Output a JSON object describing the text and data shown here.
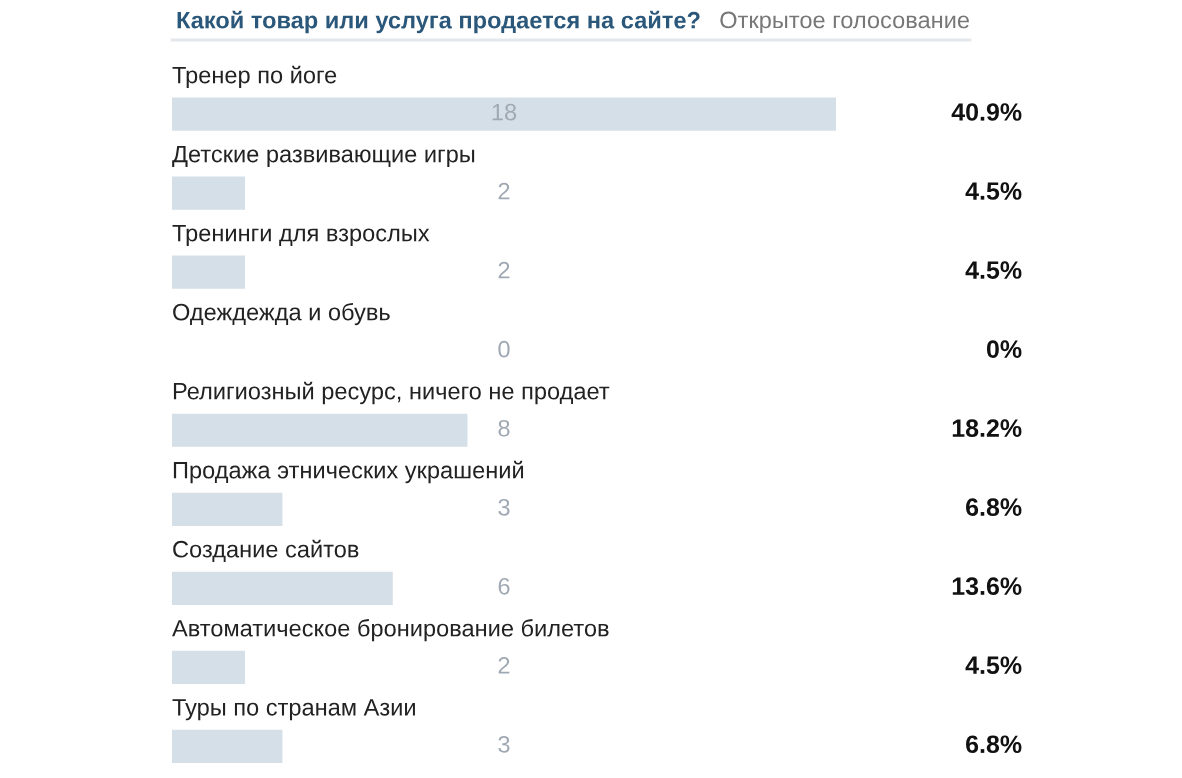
{
  "chart_data": {
    "type": "bar",
    "orientation": "horizontal",
    "title": "Какой товар или услуга продается на сайте?",
    "subtitle": "Открытое голосование",
    "categories": [
      "Тренер по йоге",
      "Детские развивающие игры",
      "Тренинги для взрослых",
      "Одеждежда и обувь",
      "Религиозный ресурс, ничего не продает",
      "Продажа этнических украшений",
      "Создание сайтов",
      "Автоматическое бронирование билетов",
      "Туры по странам Азии"
    ],
    "values": [
      40.9,
      4.5,
      4.5,
      0,
      18.2,
      6.8,
      13.6,
      4.5,
      6.8
    ],
    "value_labels": [
      "40.9%",
      "4.5%",
      "4.5%",
      "0%",
      "18.2%",
      "6.8%",
      "13.6%",
      "4.5%",
      "6.8%"
    ],
    "annotations": [
      "18",
      "2",
      "2",
      "0",
      "8",
      "3",
      "6",
      "2",
      "3"
    ],
    "color": "#d5dfe7"
  }
}
